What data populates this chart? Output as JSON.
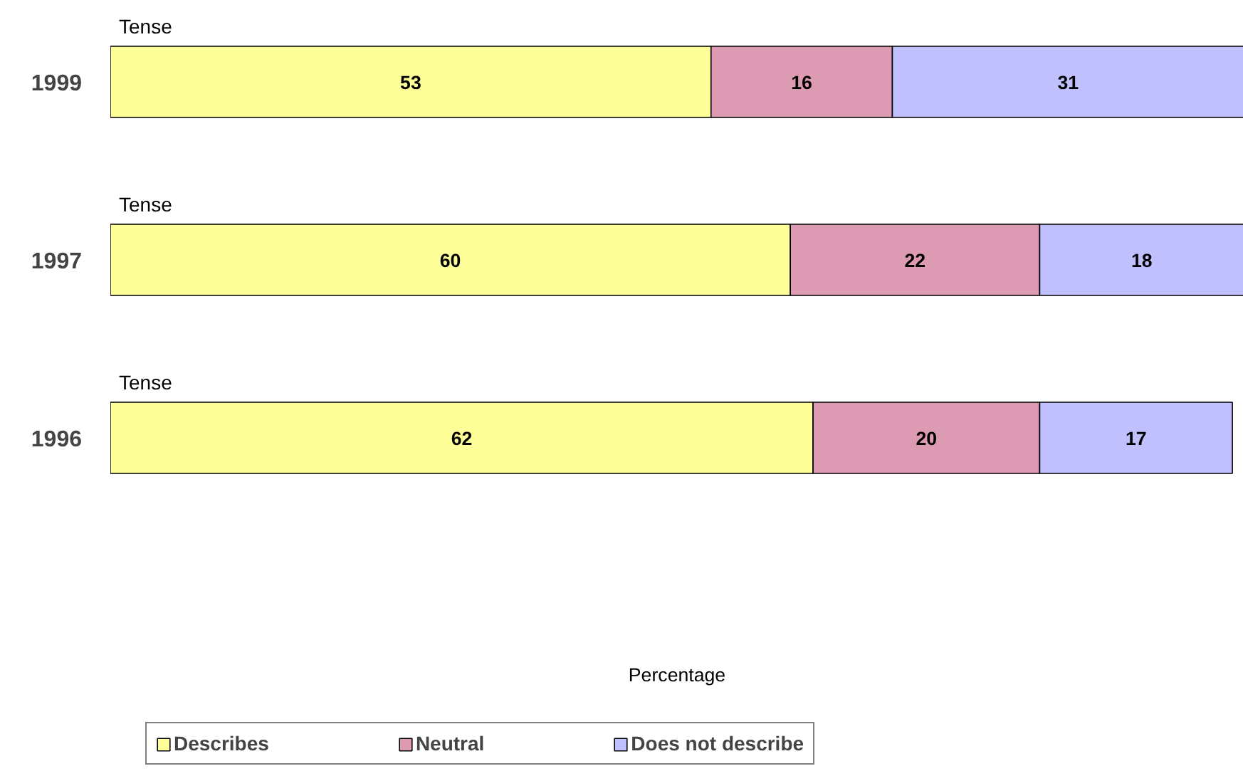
{
  "chart_data": {
    "type": "bar",
    "orientation": "horizontal",
    "stacked": true,
    "categories": [
      "1999",
      "1997",
      "1996"
    ],
    "series": [
      {
        "name": "Describes",
        "color": "#ffff99",
        "values": [
          53,
          60,
          62
        ]
      },
      {
        "name": "Neutral",
        "color": "#dd9ab3",
        "values": [
          16,
          22,
          20
        ]
      },
      {
        "name": "Does not describe",
        "color": "#c0c0ff",
        "values": [
          31,
          18,
          17
        ]
      }
    ],
    "xlim": [
      0,
      100
    ],
    "tick_labels": "y",
    "data_labels": true,
    "grid": false,
    "legend": "bottom",
    "annotations": [
      "Tense",
      "Tense",
      "Tense",
      "Percentage"
    ]
  }
}
